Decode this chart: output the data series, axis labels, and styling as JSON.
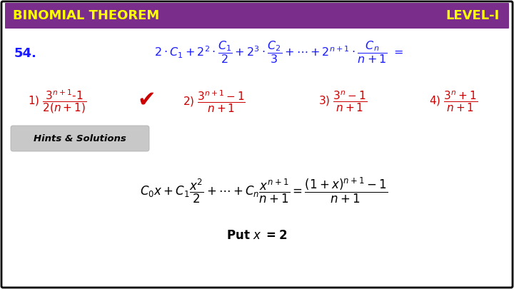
{
  "title_left": "BINOMIAL THEOREM",
  "title_right": "LEVEL-I",
  "title_bg_color": "#7B2D8B",
  "title_text_color": "#FFFF00",
  "bg_color": "#FFFFFF",
  "border_color": "#000000",
  "question_color": "#1a1aff",
  "answer_color": "#cc0000",
  "solution_text_color": "#000000",
  "q_number": "54.",
  "hints_label": "Hints & Solutions",
  "hints_bg": "#C8C8C8",
  "put_x": "Put x = 2",
  "checkmark_color": "#cc0000",
  "correct_option": 2,
  "fig_width": 7.2,
  "fig_height": 4.05,
  "dpi": 100
}
